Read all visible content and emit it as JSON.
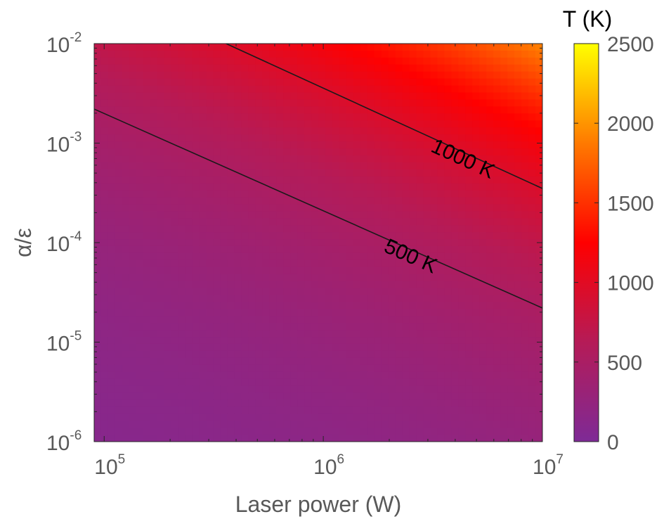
{
  "chart_data": {
    "type": "heatmap",
    "title": "",
    "xlabel": "Laser power (W)",
    "ylabel": "α/ε",
    "x_scale": "log",
    "y_scale": "log",
    "xlim": [
      90000,
      10000000
    ],
    "ylim": [
      1e-06,
      0.01
    ],
    "x_ticks": [
      {
        "base": "10",
        "exp": "5",
        "value": 100000
      },
      {
        "base": "10",
        "exp": "6",
        "value": 1000000
      },
      {
        "base": "10",
        "exp": "7",
        "value": 10000000
      }
    ],
    "y_ticks": [
      {
        "base": "10",
        "exp": "-6",
        "value": 1e-06
      },
      {
        "base": "10",
        "exp": "-5",
        "value": 1e-05
      },
      {
        "base": "10",
        "exp": "-4",
        "value": 0.0001
      },
      {
        "base": "10",
        "exp": "-3",
        "value": 0.001
      },
      {
        "base": "10",
        "exp": "-2",
        "value": 0.01
      }
    ],
    "colorbar": {
      "title": "T (K)",
      "min": 0,
      "max": 2500,
      "ticks": [
        {
          "label": "0",
          "value": 0
        },
        {
          "label": "500",
          "value": 500
        },
        {
          "label": "1000",
          "value": 1000
        },
        {
          "label": "1500",
          "value": 1500
        },
        {
          "label": "2000",
          "value": 2000
        },
        {
          "label": "2500",
          "value": 2500
        }
      ],
      "colors": [
        "#7e2a96",
        "#b51b57",
        "#ff0000",
        "#ff7a00",
        "#ffff00"
      ]
    },
    "contours": [
      {
        "label": "500 K",
        "value": 500,
        "points": [
          [
            90000,
            0.0022
          ],
          [
            10000000,
            2.2e-05
          ]
        ]
      },
      {
        "label": "1000 K",
        "value": 1000,
        "points": [
          [
            360000,
            0.01
          ],
          [
            10000000,
            0.00035
          ]
        ]
      }
    ],
    "grid": false
  }
}
